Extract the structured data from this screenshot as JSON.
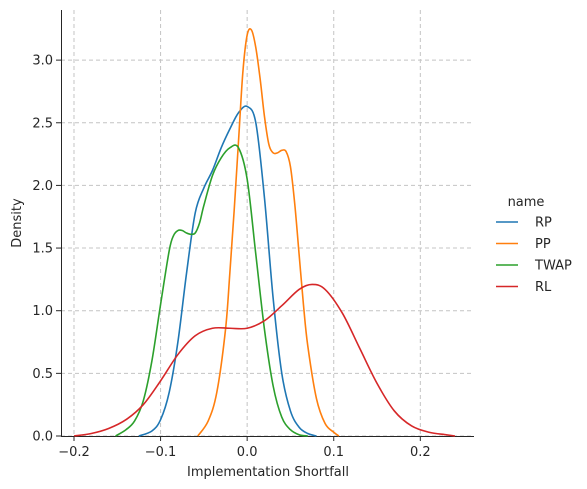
{
  "chart_data": {
    "type": "line",
    "title": "",
    "xlabel": "Implementation Shortfall",
    "ylabel": "Density",
    "xlim": [
      -0.215,
      0.262
    ],
    "ylim": [
      0,
      3.4
    ],
    "xticks": [
      -0.2,
      -0.1,
      0.0,
      0.1,
      0.2
    ],
    "xtick_labels": [
      "−0.2",
      "−0.1",
      "0.0",
      "0.1",
      "0.2"
    ],
    "yticks": [
      0.0,
      0.5,
      1.0,
      1.5,
      2.0,
      2.5,
      3.0
    ],
    "ytick_labels": [
      "0.0",
      "0.5",
      "1.0",
      "1.5",
      "2.0",
      "2.5",
      "3.0"
    ],
    "grid": true,
    "legend": {
      "title": "name",
      "placement": "right"
    },
    "series": [
      {
        "name": "RP",
        "color": "#1f77b4",
        "x": [
          -0.125,
          -0.11,
          -0.1,
          -0.09,
          -0.08,
          -0.07,
          -0.06,
          -0.05,
          -0.04,
          -0.03,
          -0.02,
          -0.01,
          0.0,
          0.01,
          0.02,
          0.03,
          0.04,
          0.05,
          0.06,
          0.07,
          0.08
        ],
        "y": [
          0.0,
          0.04,
          0.13,
          0.35,
          0.75,
          1.3,
          1.78,
          1.98,
          2.12,
          2.3,
          2.45,
          2.58,
          2.63,
          2.5,
          1.9,
          1.1,
          0.5,
          0.2,
          0.07,
          0.02,
          0.0
        ]
      },
      {
        "name": "PP",
        "color": "#ff7f0e",
        "x": [
          -0.057,
          -0.045,
          -0.035,
          -0.025,
          -0.02,
          -0.015,
          -0.01,
          -0.005,
          0.0,
          0.005,
          0.01,
          0.015,
          0.02,
          0.025,
          0.03,
          0.035,
          0.04,
          0.045,
          0.05,
          0.055,
          0.06,
          0.065,
          0.07,
          0.08,
          0.09,
          0.1,
          0.106
        ],
        "y": [
          0.0,
          0.12,
          0.35,
          0.85,
          1.3,
          1.8,
          2.35,
          2.9,
          3.2,
          3.24,
          3.1,
          2.85,
          2.55,
          2.33,
          2.26,
          2.26,
          2.28,
          2.27,
          2.15,
          1.85,
          1.45,
          1.05,
          0.72,
          0.3,
          0.1,
          0.03,
          0.0
        ]
      },
      {
        "name": "TWAP",
        "color": "#2ca02c",
        "x": [
          -0.152,
          -0.14,
          -0.13,
          -0.12,
          -0.11,
          -0.1,
          -0.09,
          -0.085,
          -0.08,
          -0.075,
          -0.07,
          -0.065,
          -0.06,
          -0.055,
          -0.05,
          -0.04,
          -0.03,
          -0.02,
          -0.01,
          0.0,
          0.01,
          0.02,
          0.03,
          0.04,
          0.05,
          0.06,
          0.07
        ],
        "y": [
          0.0,
          0.05,
          0.12,
          0.28,
          0.6,
          1.05,
          1.48,
          1.6,
          1.64,
          1.64,
          1.62,
          1.61,
          1.62,
          1.7,
          1.84,
          2.08,
          2.22,
          2.3,
          2.3,
          2.05,
          1.45,
          0.85,
          0.4,
          0.15,
          0.05,
          0.01,
          0.0
        ]
      },
      {
        "name": "RL",
        "color": "#d62728",
        "x": [
          -0.2,
          -0.18,
          -0.16,
          -0.14,
          -0.12,
          -0.1,
          -0.08,
          -0.06,
          -0.04,
          -0.02,
          0.0,
          0.02,
          0.04,
          0.06,
          0.075,
          0.09,
          0.11,
          0.13,
          0.15,
          0.17,
          0.19,
          0.21,
          0.23,
          0.24
        ],
        "y": [
          0.0,
          0.02,
          0.06,
          0.13,
          0.25,
          0.44,
          0.65,
          0.8,
          0.86,
          0.86,
          0.86,
          0.92,
          1.04,
          1.17,
          1.21,
          1.17,
          0.98,
          0.7,
          0.42,
          0.2,
          0.08,
          0.03,
          0.01,
          0.0
        ]
      }
    ]
  }
}
